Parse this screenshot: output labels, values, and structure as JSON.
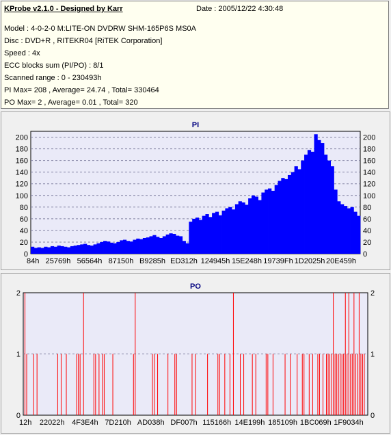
{
  "header": {
    "app_title": "KProbe v2.1.0 - Designed by Karr",
    "date": "Date : 2005/12/22 4:30:48",
    "lines": [
      "Model : 4-0-2-0 M:LITE-ON DVDRW SHM-165P6S MS0A",
      "Disc : DVD+R , RITEKR04 [RiTEK Corporation]",
      "Speed : 4x",
      "ECC blocks sum (PI/PO) : 8/1",
      "Scanned range : 0 - 230493h",
      "PI Max= 208 , Average= 24.74 , Total= 330464",
      "PO Max= 2 , Average= 0.01 , Total= 320"
    ]
  },
  "colors": {
    "pi_fill": "#0000ff",
    "po_bar": "#ff0000",
    "plot_bg": "#eaeaf8",
    "grid": "#8080a0"
  },
  "chart_data": [
    {
      "type": "area",
      "title": "PI",
      "xlabel": "",
      "ylabel": "",
      "ylim": [
        0,
        210
      ],
      "y_ticks": [
        0,
        20,
        40,
        60,
        80,
        100,
        120,
        140,
        160,
        180,
        200
      ],
      "x_tick_labels": [
        "84h",
        "25769h",
        "56564h",
        "87150h",
        "B9285h",
        "ED312h",
        "124945h",
        "15E248h",
        "19739Fh",
        "1D2025h",
        "20E459h"
      ],
      "grid": true,
      "series": [
        {
          "values": [
            12,
            10,
            11,
            10,
            12,
            11,
            13,
            12,
            14,
            13,
            12,
            11,
            13,
            14,
            15,
            16,
            17,
            15,
            14,
            16,
            18,
            20,
            22,
            21,
            19,
            18,
            20,
            23,
            24,
            22,
            21,
            24,
            26,
            25,
            27,
            28,
            30,
            32,
            29,
            27,
            30,
            33,
            35,
            34,
            31,
            30,
            22,
            18,
            55,
            60,
            62,
            58,
            65,
            68,
            63,
            70,
            72,
            66,
            74,
            78,
            80,
            76,
            85,
            90,
            88,
            84,
            95,
            100,
            98,
            92,
            105,
            110,
            112,
            108,
            118,
            125,
            130,
            128,
            135,
            140,
            150,
            145,
            160,
            170,
            178,
            175,
            205,
            195,
            190,
            170,
            160,
            150,
            110,
            90,
            85,
            82,
            78,
            80,
            72,
            65
          ]
        }
      ]
    },
    {
      "type": "bar",
      "title": "PO",
      "xlabel": "",
      "ylabel": "",
      "ylim": [
        0,
        2
      ],
      "y_ticks": [
        0,
        1,
        2
      ],
      "x_tick_labels": [
        "12h",
        "22022h",
        "4F3E4h",
        "7D210h",
        "AD038h",
        "DF007h",
        "115166h",
        "14E199h",
        "185109h",
        "1BC069h",
        "1F9034h"
      ],
      "grid": true,
      "series": [
        {
          "positions": [
            0.5,
            1.0,
            3.0,
            4.0,
            10.0,
            11.0,
            12.5,
            15.5,
            16.0,
            16.5,
            17.5,
            20.5,
            21.0,
            22.0,
            23.0,
            23.5,
            26.0,
            32.0,
            32.5,
            37.5,
            38.0,
            39.0,
            42.0,
            44.0,
            44.5,
            49.0,
            50.0,
            53.5,
            56.5,
            57.0,
            58.5,
            60.0,
            61.0,
            63.0,
            64.0,
            66.5,
            67.5,
            70.5,
            71.0,
            72.5,
            76.0,
            77.5,
            79.5,
            81.0,
            81.5,
            83.0,
            84.0,
            85.5,
            86.0,
            87.0,
            88.0,
            88.5,
            89.0,
            89.5,
            90.0,
            90.5,
            91.0,
            91.5,
            92.0,
            92.5,
            93.0,
            93.5,
            94.0,
            94.5,
            95.0,
            95.5,
            96.0,
            96.5,
            97.0,
            97.5,
            98.0,
            98.5,
            99.0
          ],
          "values": [
            2,
            1,
            1,
            1,
            1,
            1,
            1,
            1,
            1,
            1,
            2,
            1,
            1,
            1,
            1,
            1,
            1,
            1,
            2,
            1,
            1,
            1,
            1,
            1,
            1,
            1,
            1,
            1,
            1,
            1,
            1,
            1,
            2,
            1,
            1,
            1,
            1,
            1,
            1,
            1,
            1,
            1,
            1,
            1,
            1,
            1,
            1,
            1,
            1,
            1,
            1,
            1,
            1,
            1,
            2,
            1,
            1,
            1,
            1,
            1,
            1,
            2,
            1,
            2,
            1,
            1,
            2,
            1,
            1,
            2,
            1,
            1,
            1
          ]
        }
      ]
    }
  ]
}
